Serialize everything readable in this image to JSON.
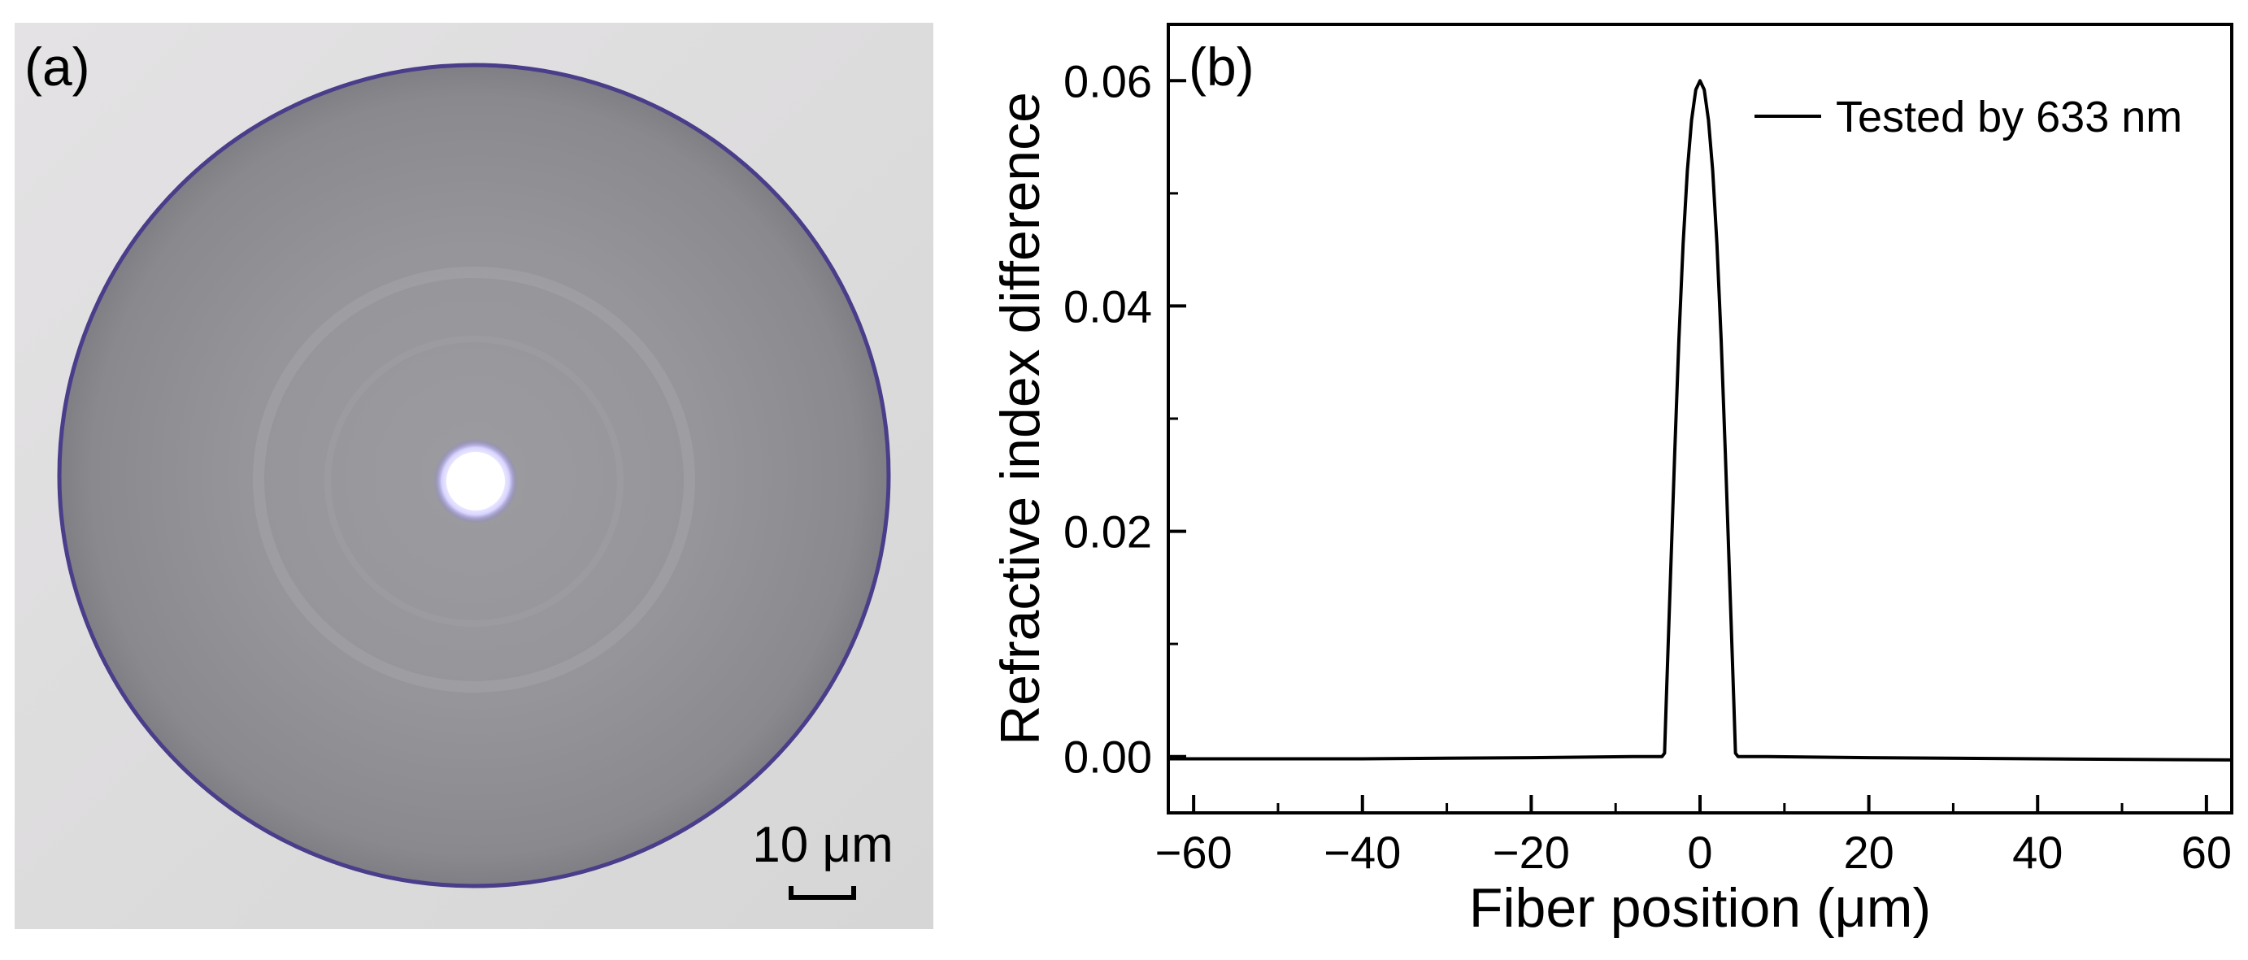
{
  "panel_a": {
    "label": "(a)",
    "scale_bar_label": "10 μm",
    "colors": {
      "background": "#dcdcdc",
      "cladding": "#8e8e92",
      "rim": "#4a3d8a",
      "core": "#ffffff",
      "core_glow": "#7b6fd6"
    }
  },
  "chart_data": {
    "type": "line",
    "panel_label": "(b)",
    "title": "",
    "xlabel": "Fiber position (μm)",
    "ylabel": "Refractive index difference",
    "xlim": [
      -63,
      63
    ],
    "ylim": [
      -0.005,
      0.065
    ],
    "xticks": [
      -60,
      -40,
      -20,
      0,
      20,
      40,
      60
    ],
    "yticks": [
      0.0,
      0.02,
      0.04,
      0.06
    ],
    "xtick_labels": [
      "−60",
      "−40",
      "−20",
      "0",
      "20",
      "40",
      "60"
    ],
    "ytick_labels": [
      "0.00",
      "0.02",
      "0.04",
      "0.06"
    ],
    "grid": false,
    "legend_position": "top-right",
    "series": [
      {
        "name": "Tested by 633 nm",
        "color": "#000000",
        "x": [
          -63,
          -40,
          -20,
          -8,
          -5,
          -4.5,
          -4.2,
          -4,
          -3.5,
          -3,
          -2.5,
          -2,
          -1.5,
          -1,
          -0.5,
          0,
          0.5,
          1,
          1.5,
          2,
          2.5,
          3,
          3.5,
          4,
          4.2,
          4.5,
          5,
          8,
          20,
          40,
          63
        ],
        "y": [
          -0.0002,
          -0.0002,
          -0.0001,
          0.0,
          0.0,
          0.0,
          0.0003,
          0.005,
          0.016,
          0.027,
          0.037,
          0.0455,
          0.052,
          0.0565,
          0.0592,
          0.06,
          0.0592,
          0.0565,
          0.052,
          0.0455,
          0.037,
          0.027,
          0.016,
          0.005,
          0.0003,
          0.0,
          0.0,
          0.0,
          -0.0001,
          -0.0002,
          -0.0003
        ]
      }
    ]
  }
}
